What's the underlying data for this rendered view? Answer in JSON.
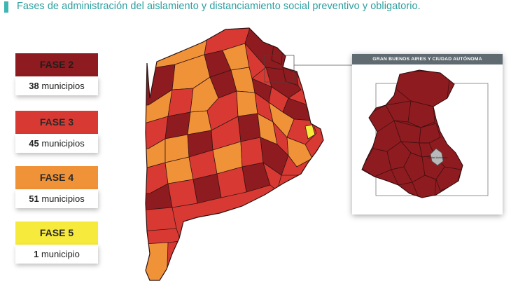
{
  "title": "Fases de administración del aislamiento y distanciamiento social preventivo y obligatorio.",
  "colors": {
    "fase_2": "#8d1b1f",
    "fase_3": "#d83a33",
    "fase_4": "#f09338",
    "fase_5": "#f6ea3d",
    "accent": "#3fb6b1"
  },
  "legend": [
    {
      "label": "FASE 2",
      "count": "38",
      "unit": "municipios",
      "color": "#8d1b1f"
    },
    {
      "label": "FASE 3",
      "count": "45",
      "unit": "municipios",
      "color": "#d83a33"
    },
    {
      "label": "FASE 4",
      "count": "51",
      "unit": "municipios",
      "color": "#f09338"
    },
    {
      "label": "FASE 5",
      "count": "1",
      "unit": "municipio",
      "color": "#f6ea3d"
    }
  ],
  "inset": {
    "title": "GRAN BUENOS AIRES Y CIUDAD AUTÓNOMA",
    "caba_label": "Ciudad Autónoma"
  }
}
